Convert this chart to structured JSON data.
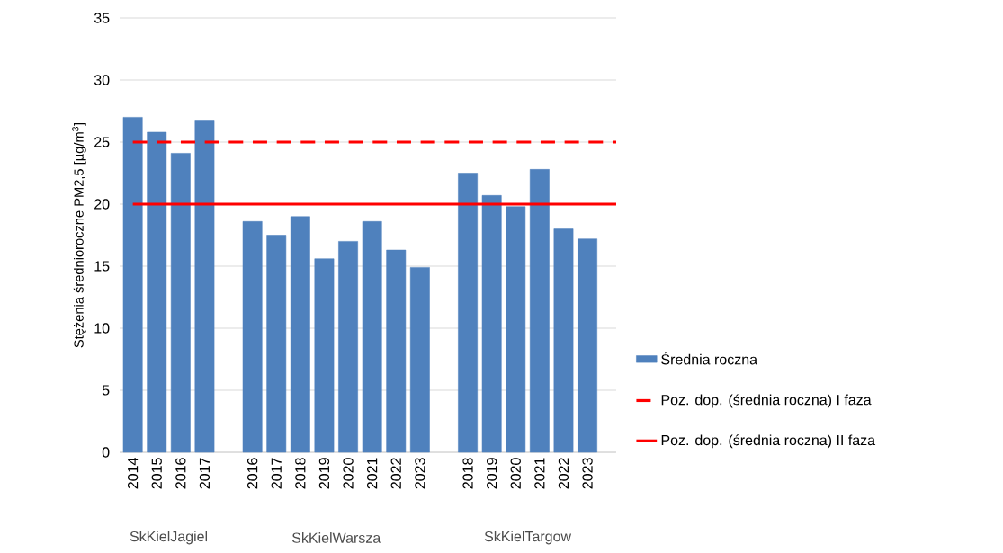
{
  "chart_data": {
    "type": "bar",
    "ylabel": "Stężenia średnioroczne PM2,5 [µg/m$^{3}$]",
    "categories": [
      "2014",
      "2015",
      "2016",
      "2017",
      null,
      "2016",
      "2017",
      "2018",
      "2019",
      "2020",
      "2021",
      "2022",
      "2023",
      null,
      "2018",
      "2019",
      "2020",
      "2021",
      "2022",
      "2023"
    ],
    "series": [
      {
        "name": "Średnia roczna",
        "color": "#4f81bd",
        "values": [
          27.0,
          25.8,
          24.1,
          26.7,
          null,
          18.6,
          17.5,
          19.0,
          15.6,
          17.0,
          18.6,
          16.3,
          14.9,
          null,
          22.5,
          20.7,
          19.8,
          22.8,
          18.0,
          17.2
        ]
      }
    ],
    "ref_lines": [
      {
        "axis": "y",
        "value": 25,
        "label": "Poz. dop. (średnia roczna) I faza",
        "color": "#ff0000",
        "line_style": "dashed"
      },
      {
        "axis": "y",
        "value": 20,
        "label": "Poz. dop. (średnia roczna) II faza",
        "color": "#ff0000",
        "line_style": "solid"
      }
    ],
    "annotations": [
      "SkKielJagiel",
      "SkKielWarsza",
      "SkKielTargow"
    ],
    "ylim": [
      0,
      35
    ],
    "yticks": [
      0,
      5,
      10,
      15,
      20,
      25,
      30,
      35
    ],
    "grid": "y",
    "legend": "right"
  }
}
